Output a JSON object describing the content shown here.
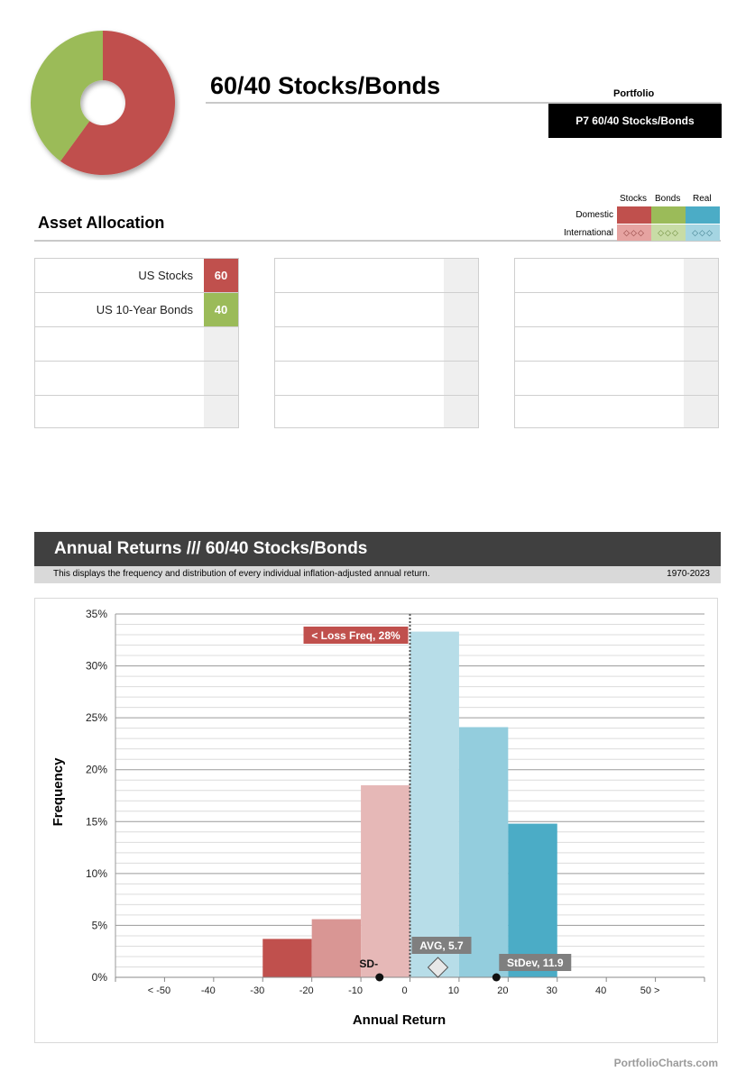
{
  "header": {
    "title": "60/40 Stocks/Bonds",
    "portfolio_label": "Portfolio",
    "portfolio_name": "P7  60/40 Stocks/Bonds"
  },
  "donut": {
    "slices": [
      {
        "name": "US Stocks",
        "value": 60,
        "color": "#c0504d"
      },
      {
        "name": "US 10-Year Bonds",
        "value": 40,
        "color": "#9bbb59"
      }
    ]
  },
  "asset_allocation": {
    "title": "Asset Allocation",
    "legend": {
      "columns": [
        "Stocks",
        "Bonds",
        "Real"
      ],
      "rows": [
        "Domestic",
        "International"
      ],
      "domestic_colors": [
        "#c0504d",
        "#9bbb59",
        "#4bacc6"
      ],
      "international_colors": [
        "#e6a3a1",
        "#c8dca6",
        "#a5d5e2"
      ],
      "international_marks": "◇◇◇"
    },
    "tables": [
      {
        "rows": [
          {
            "name": "US Stocks",
            "value": "60",
            "color": "#c0504d"
          },
          {
            "name": "US 10-Year Bonds",
            "value": "40",
            "color": "#9bbb59"
          },
          {
            "name": "",
            "value": ""
          },
          {
            "name": "",
            "value": ""
          },
          {
            "name": "",
            "value": ""
          }
        ]
      },
      {
        "rows": [
          {
            "name": "",
            "value": ""
          },
          {
            "name": "",
            "value": ""
          },
          {
            "name": "",
            "value": ""
          },
          {
            "name": "",
            "value": ""
          },
          {
            "name": "",
            "value": ""
          }
        ]
      },
      {
        "rows": [
          {
            "name": "",
            "value": ""
          },
          {
            "name": "",
            "value": ""
          },
          {
            "name": "",
            "value": ""
          },
          {
            "name": "",
            "value": ""
          },
          {
            "name": "",
            "value": ""
          }
        ]
      }
    ]
  },
  "section": {
    "title": "Annual Returns /// 60/40 Stocks/Bonds",
    "description": "This displays the frequency and distribution of every individual inflation-adjusted annual return.",
    "period": "1970-2023"
  },
  "chart_data": {
    "type": "bar",
    "xlabel": "Annual Return",
    "ylabel": "Frequency",
    "categories": [
      "< -50",
      "-50 to -40",
      "-40 to -30",
      "-30 to -20",
      "-20 to -10",
      "-10 to 0",
      "0 to 10",
      "10 to 20",
      "20 to 30",
      "30 to 40",
      "40 to 50",
      "50 >"
    ],
    "values": [
      0,
      0,
      0,
      3.7,
      5.6,
      18.5,
      33.3,
      24.1,
      14.8,
      0,
      0,
      0
    ],
    "bar_colors": [
      "#c0504d",
      "#c0504d",
      "#c0504d",
      "#c0504d",
      "#d99694",
      "#e6b8b7",
      "#b7dde8",
      "#93cddd",
      "#4bacc6",
      "#4bacc6",
      "#4bacc6",
      "#4bacc6"
    ],
    "x_tick_labels": [
      "< -50",
      "-40",
      "-30",
      "-20",
      "-10",
      "0",
      "10",
      "20",
      "30",
      "40",
      "50 >"
    ],
    "y_tick_labels": [
      "0%",
      "5%",
      "10%",
      "15%",
      "20%",
      "25%",
      "30%",
      "35%"
    ],
    "ylim": [
      0,
      35
    ],
    "xlim": [
      -60,
      60
    ],
    "grid": true,
    "annotations": {
      "loss_freq": {
        "label": "< Loss  Freq, 28%",
        "x": 0,
        "color": "#c0504d"
      },
      "average": {
        "label": "AVG, 5.7",
        "x": 5.7
      },
      "sd_minus": {
        "label": "SD-",
        "x": -6.2
      },
      "sd_plus": {
        "label": "StDev, 11.9",
        "x": 17.6
      }
    }
  },
  "footer": "PortfolioCharts.com"
}
